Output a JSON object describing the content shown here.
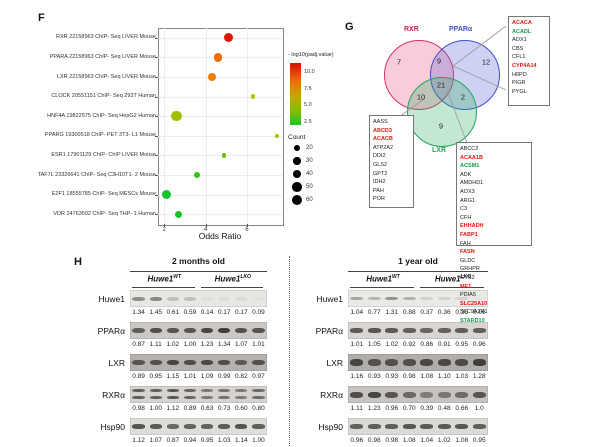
{
  "panels": {
    "f": "F",
    "g": "G",
    "h": "H"
  },
  "chart_data": {
    "type": "scatter",
    "title": "",
    "xlabel": "Odds Ratio",
    "ylabel": "",
    "xlim": [
      1.7,
      7.7
    ],
    "xticks": [
      "2",
      "4",
      "6"
    ],
    "grid": true,
    "color_legend": {
      "title": "- log10(padj.value)",
      "ticks": [
        "10.0",
        "7.5",
        "5.0",
        "2.5"
      ]
    },
    "size_legend": {
      "title": "Count",
      "ticks": [
        "20",
        "30",
        "40",
        "50",
        "60"
      ]
    },
    "points": [
      {
        "label": "RXR 22158963 ChIP- Seq LIVER Mouse",
        "odds_ratio": 5.1,
        "count": 45,
        "neg_log10_padj": 11.5,
        "color": "#e51400"
      },
      {
        "label": "PPARA 22158963 ChIP- Seq LIVER Mouse",
        "odds_ratio": 4.6,
        "count": 40,
        "neg_log10_padj": 8.8,
        "color": "#ef6c00"
      },
      {
        "label": "LXR 22158963 ChIP- Seq LIVER Mouse",
        "odds_ratio": 4.3,
        "count": 38,
        "neg_log10_padj": 8.4,
        "color": "#ef7d00"
      },
      {
        "label": "CLOCK 20551151 ChIP- Seq 293T Human",
        "odds_ratio": 6.3,
        "count": 12,
        "neg_log10_padj": 5.5,
        "color": "#b3c400"
      },
      {
        "label": "HNF4A 19822575 ChIP- Seq HepG2 Human",
        "odds_ratio": 2.6,
        "count": 60,
        "neg_log10_padj": 5.2,
        "color": "#a2bd00"
      },
      {
        "label": "PPARG 19300518 ChIP- PET 3T3- L1 Mouse",
        "odds_ratio": 7.45,
        "count": 8,
        "neg_log10_padj": 5.0,
        "color": "#a8c400"
      },
      {
        "label": "ESR1 17901129 ChIP- ChIP LIVER Mouse",
        "odds_ratio": 4.9,
        "count": 10,
        "neg_log10_padj": 4.0,
        "color": "#63c100"
      },
      {
        "label": "TAF7L 23326641 ChIP- Seq C3H10T1- 2 Mouse",
        "odds_ratio": 3.6,
        "count": 20,
        "neg_log10_padj": 3.4,
        "color": "#35c117"
      },
      {
        "label": "E2F1 18555785 ChIP- Seq MESCs Mouse",
        "odds_ratio": 2.1,
        "count": 45,
        "neg_log10_padj": 2.8,
        "color": "#16c22b"
      },
      {
        "label": "VDR 24763502 ChIP- Seq THP- 1 Human",
        "odds_ratio": 2.7,
        "count": 28,
        "neg_log10_padj": 3.0,
        "color": "#1cc22b"
      }
    ]
  },
  "venn": {
    "sets": [
      {
        "name": "RXR",
        "label_color": "#c2255c"
      },
      {
        "name": "PPARα",
        "label_color": "#4250c8"
      },
      {
        "name": "LXR",
        "label_color": "#21a35c"
      }
    ],
    "regions": {
      "rxr_only": "7",
      "rxr_ppara": "9",
      "ppara_only": "12",
      "rxr_lxr": "10",
      "all": "21",
      "ppara_lxr": "2",
      "lxr_only": "9"
    },
    "gene_boxes": {
      "rxr_ppara": [
        [
          "ACACA",
          "r"
        ],
        [
          "ACADL",
          "g"
        ],
        [
          "AOX1",
          "k"
        ],
        [
          "CBS",
          "k"
        ],
        [
          "CFL1",
          "k"
        ],
        [
          "CYP4A14",
          "r"
        ],
        [
          "H6PD",
          "k"
        ],
        [
          "PIGR",
          "k"
        ],
        [
          "PYGL",
          "k"
        ]
      ],
      "rxr_lxr": [
        [
          "AASS",
          "k"
        ],
        [
          "ABCD3",
          "r"
        ],
        [
          "ACACB",
          "r"
        ],
        [
          "ATP2A2",
          "k"
        ],
        [
          "DDI2",
          "k"
        ],
        [
          "GLS2",
          "k"
        ],
        [
          "GPT2",
          "k"
        ],
        [
          "IDH2",
          "k"
        ],
        [
          "PAH",
          "k"
        ],
        [
          "POR",
          "k"
        ]
      ],
      "all_col1": [
        [
          "ABCC2",
          "k"
        ],
        [
          "ACAA1B",
          "r"
        ],
        [
          "ACSM1",
          "g"
        ],
        [
          "ADK",
          "k"
        ],
        [
          "AMDHD1",
          "k"
        ],
        [
          "AOX3",
          "k"
        ],
        [
          "ARG1",
          "k"
        ],
        [
          "C3",
          "k"
        ],
        [
          "CFH",
          "k"
        ],
        [
          "EHHADH",
          "r"
        ],
        [
          "FABP1",
          "r"
        ],
        [
          "FAH",
          "k"
        ]
      ],
      "all_col2": [
        [
          "FASN",
          "r"
        ],
        [
          "GLDC",
          "k"
        ],
        [
          "GRHPR",
          "k"
        ],
        [
          "GYS2",
          "k"
        ],
        [
          "ME1",
          "r"
        ],
        [
          "PDIA5",
          "k"
        ],
        [
          "SLC25A10",
          "r"
        ],
        [
          "SLC9A3R1",
          "k"
        ],
        [
          "STARD10",
          "g"
        ]
      ]
    }
  },
  "blots": {
    "groups": [
      {
        "title": "2 months old",
        "genotypes": [
          {
            "gene": "Huwe1",
            "sup": "WT"
          },
          {
            "gene": "Huwe1",
            "sup": "LKO"
          }
        ],
        "rows": [
          {
            "protein": "Huwe1",
            "band_style": "faint",
            "values": [
              "1.34",
              "1.45",
              "0.61",
              "0.59",
              "0.14",
              "0.17",
              "0.17",
              "0.09"
            ]
          },
          {
            "protein": "PPARα",
            "band_style": "solid",
            "values": [
              "0.87",
              "1.11",
              "1.02",
              "1.00",
              "1.23",
              "1.34",
              "1.07",
              "1.01"
            ]
          },
          {
            "protein": "LXR",
            "band_style": "solid",
            "values": [
              "0.89",
              "0.95",
              "1.15",
              "1.01",
              "1.09",
              "0.99",
              "0.82",
              "0.97"
            ]
          },
          {
            "protein": "RXRα",
            "band_style": "double",
            "values": [
              "0.98",
              "1.00",
              "1.12",
              "0.89",
              "0.63",
              "0.73",
              "0.60",
              "0.80"
            ]
          },
          {
            "protein": "Hsp90",
            "band_style": "solid",
            "values": [
              "1.12",
              "1.07",
              "0.87",
              "0.94",
              "0.95",
              "1.03",
              "1.14",
              "1.00"
            ]
          }
        ]
      },
      {
        "title": "1 year old",
        "genotypes": [
          {
            "gene": "Huwe1",
            "sup": "WT"
          },
          {
            "gene": "Huwe1",
            "sup": "LKO"
          }
        ],
        "rows": [
          {
            "protein": "Huwe1",
            "band_style": "faint",
            "values": [
              "1.04",
              "0.77",
              "1.31",
              "0.88",
              "0.37",
              "0.36",
              "0.35",
              "0.06"
            ]
          },
          {
            "protein": "PPARα",
            "band_style": "solid",
            "values": [
              "1.01",
              "1.05",
              "1.02",
              "0.92",
              "0.86",
              "0.91",
              "0.95",
              "0.96"
            ]
          },
          {
            "protein": "LXR",
            "band_style": "solid",
            "values": [
              "1.16",
              "0.93",
              "0.93",
              "0.98",
              "1.08",
              "1.10",
              "1.03",
              "1.28"
            ]
          },
          {
            "protein": "RXRα",
            "band_style": "solid",
            "values": [
              "1.11",
              "1.23",
              "0.96",
              "0.70",
              "0.39",
              "0.48",
              "0.66",
              "1.0"
            ]
          },
          {
            "protein": "Hsp90",
            "band_style": "solid",
            "values": [
              "0.96",
              "0.98",
              "0.98",
              "1.08",
              "1.04",
              "1.02",
              "1.08",
              "0.95"
            ]
          }
        ]
      }
    ]
  }
}
